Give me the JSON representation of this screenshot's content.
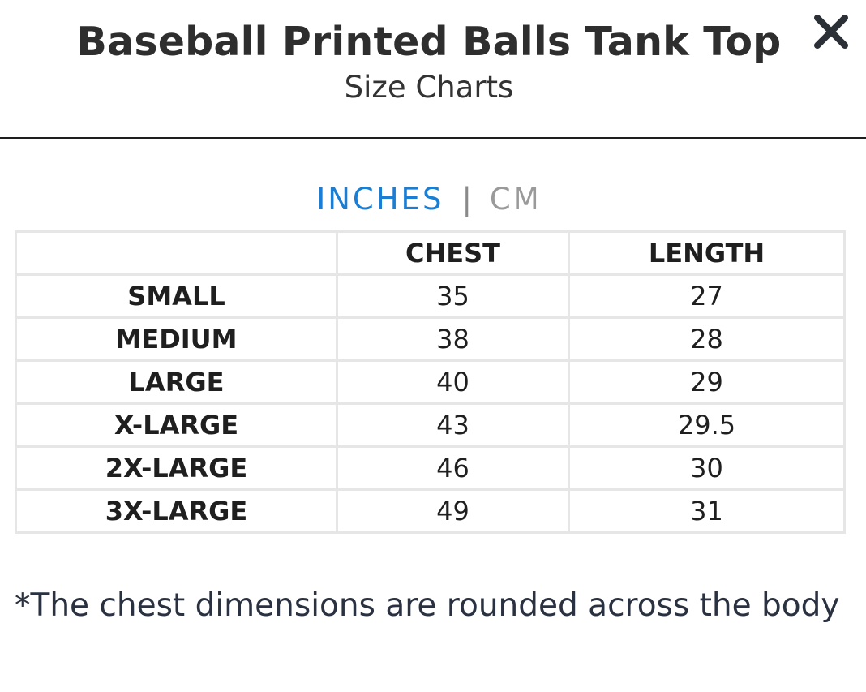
{
  "header": {
    "title": "Baseball Printed Balls Tank Top",
    "subtitle": "Size Charts",
    "close_icon": "close-icon"
  },
  "units": {
    "inches": "INCHES",
    "separator": "|",
    "cm": "CM",
    "active": "INCHES",
    "active_color": "#1a7fd4",
    "inactive_color": "#9a9a9a"
  },
  "table": {
    "headers": [
      "",
      "CHEST",
      "LENGTH"
    ],
    "rows": [
      {
        "size": "SMALL",
        "chest": "35",
        "length": "27"
      },
      {
        "size": "MEDIUM",
        "chest": "38",
        "length": "28"
      },
      {
        "size": "LARGE",
        "chest": "40",
        "length": "29"
      },
      {
        "size": "X-LARGE",
        "chest": "43",
        "length": "29.5"
      },
      {
        "size": "2X-LARGE",
        "chest": "46",
        "length": "30"
      },
      {
        "size": "3X-LARGE",
        "chest": "49",
        "length": "31"
      }
    ]
  },
  "note": "*The chest dimensions are rounded across the body"
}
